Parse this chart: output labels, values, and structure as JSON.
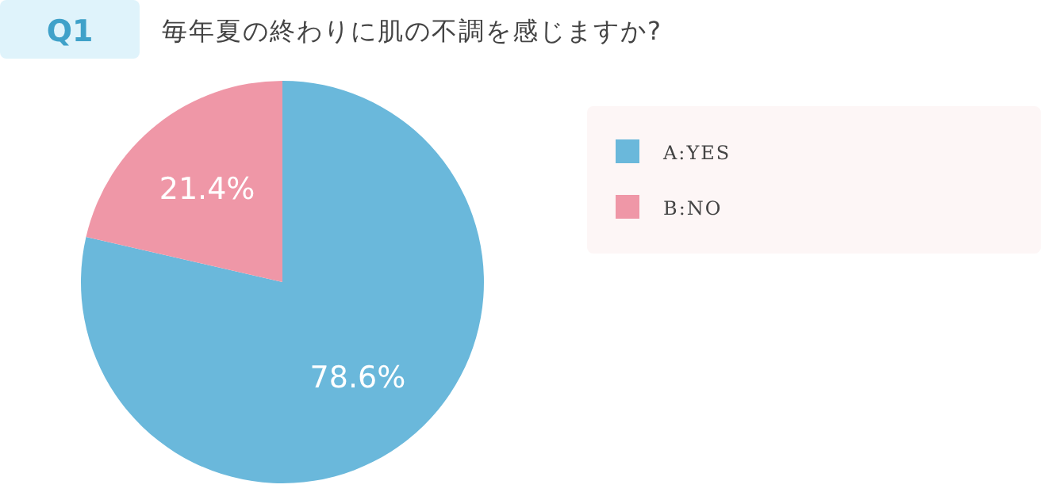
{
  "chart_data": {
    "type": "pie",
    "title": "毎年夏の終わりに肌の不調を感じますか?",
    "annotations": [
      "Q1"
    ],
    "categories": [
      "A:YES",
      "B:NO"
    ],
    "values": [
      78.6,
      21.4
    ],
    "colors": [
      "#6ab8db",
      "#ef97a7"
    ],
    "value_labels": [
      "78.6%",
      "21.4%"
    ],
    "legend": "right"
  }
}
